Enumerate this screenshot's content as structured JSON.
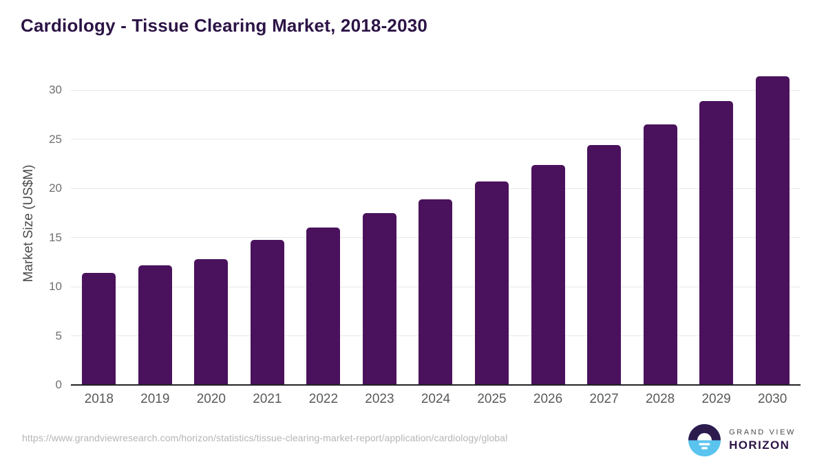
{
  "title": "Cardiology - Tissue Clearing Market, 2018-2030",
  "chart_data": {
    "type": "bar",
    "title": "Cardiology - Tissue Clearing Market, 2018-2030",
    "categories": [
      "2018",
      "2019",
      "2020",
      "2021",
      "2022",
      "2023",
      "2024",
      "2025",
      "2026",
      "2027",
      "2028",
      "2029",
      "2030"
    ],
    "values": [
      11.4,
      12.2,
      12.8,
      14.8,
      16.0,
      17.5,
      18.9,
      20.7,
      22.4,
      24.4,
      26.5,
      28.9,
      31.4
    ],
    "xlabel": "",
    "ylabel": "Market Size (US$M)",
    "ylim": [
      0,
      32.9
    ],
    "yticks": [
      0,
      5,
      10,
      15,
      20,
      25,
      30
    ],
    "grid": true,
    "legend": "none",
    "bar_color": "#4a115c"
  },
  "colors": {
    "title_text": "#2c1446",
    "bar": "#4a115c",
    "gridline": "#e8e8e8",
    "axis_line": "#222222",
    "tick_text": "#6f6f6f",
    "xlabel_text": "#595959",
    "source_text": "#b5b5b5",
    "logo_purple": "#2d1b4e",
    "logo_blue": "#5ac4ee"
  },
  "footer": {
    "source_url": "https://www.grandviewresearch.com/horizon/statistics/tissue-clearing-market-report/application/cardiology/global",
    "logo": {
      "line1": "GRAND VIEW",
      "line2": "HORIZON"
    }
  }
}
